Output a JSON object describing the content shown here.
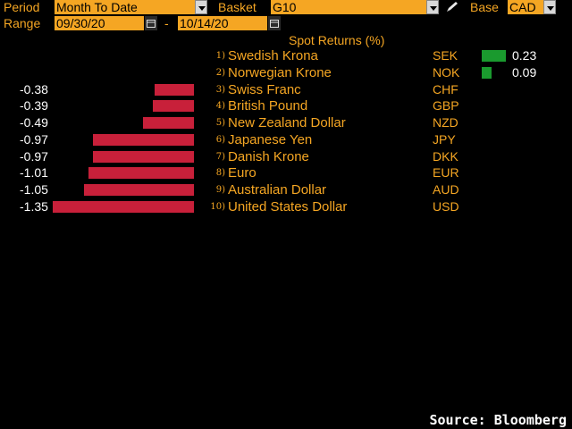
{
  "controls": {
    "period_label": "Period",
    "period_value": "Month To Date",
    "basket_label": "Basket",
    "basket_value": "G10",
    "base_label": "Base",
    "base_value": "CAD",
    "range_label": "Range",
    "range_start": "09/30/20",
    "range_sep": "-",
    "range_end": "10/14/20"
  },
  "chart_data": {
    "type": "bar",
    "title": "Spot Returns (%)",
    "rows": [
      {
        "rank": "1)",
        "name": "Swedish Krona",
        "code": "SEK",
        "value": 0.23,
        "label": "0.23"
      },
      {
        "rank": "2)",
        "name": "Norwegian Krone",
        "code": "NOK",
        "value": 0.09,
        "label": "0.09"
      },
      {
        "rank": "3)",
        "name": "Swiss Franc",
        "code": "CHF",
        "value": -0.38,
        "label": "-0.38"
      },
      {
        "rank": "4)",
        "name": "British Pound",
        "code": "GBP",
        "value": -0.39,
        "label": "-0.39"
      },
      {
        "rank": "5)",
        "name": "New Zealand Dollar",
        "code": "NZD",
        "value": -0.49,
        "label": "-0.49"
      },
      {
        "rank": "6)",
        "name": "Japanese Yen",
        "code": "JPY",
        "value": -0.97,
        "label": "-0.97"
      },
      {
        "rank": "7)",
        "name": "Danish Krone",
        "code": "DKK",
        "value": -0.97,
        "label": "-0.97"
      },
      {
        "rank": "8)",
        "name": "Euro",
        "code": "EUR",
        "value": -1.01,
        "label": "-1.01"
      },
      {
        "rank": "9)",
        "name": "Australian Dollar",
        "code": "AUD",
        "value": -1.05,
        "label": "-1.05"
      },
      {
        "rank": "10)",
        "name": "United States Dollar",
        "code": "USD",
        "value": -1.35,
        "label": "-1.35"
      }
    ],
    "colors": {
      "positive": "#1a9a2e",
      "negative": "#c8203a"
    }
  },
  "footer": {
    "source": "Source: Bloomberg"
  }
}
